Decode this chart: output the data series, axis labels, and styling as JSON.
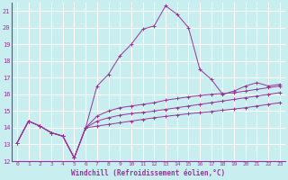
{
  "xlabel": "Windchill (Refroidissement éolien,°C)",
  "background_color": "#c8eef0",
  "grid_color": "#ffffff",
  "line_color": "#993399",
  "xlim": [
    -0.5,
    23.5
  ],
  "ylim": [
    12,
    21.5
  ],
  "yticks": [
    12,
    13,
    14,
    15,
    16,
    17,
    18,
    19,
    20,
    21
  ],
  "xticks": [
    0,
    1,
    2,
    3,
    4,
    5,
    6,
    7,
    8,
    9,
    10,
    11,
    12,
    13,
    14,
    15,
    16,
    17,
    18,
    19,
    20,
    21,
    22,
    23
  ],
  "series": [
    [
      13.1,
      14.4,
      14.1,
      13.7,
      13.5,
      12.2,
      14.0,
      16.5,
      17.2,
      18.3,
      19.0,
      19.9,
      20.1,
      21.3,
      20.8,
      20.0,
      17.5,
      16.9,
      16.0,
      16.2,
      16.5,
      16.7,
      16.5,
      16.6
    ],
    [
      13.1,
      14.4,
      14.1,
      13.7,
      13.5,
      12.2,
      14.0,
      14.7,
      15.0,
      15.2,
      15.3,
      15.4,
      15.5,
      15.65,
      15.75,
      15.85,
      15.93,
      16.0,
      16.05,
      16.1,
      16.2,
      16.3,
      16.4,
      16.5
    ],
    [
      13.1,
      14.4,
      14.1,
      13.7,
      13.5,
      12.2,
      14.0,
      14.4,
      14.6,
      14.75,
      14.85,
      14.92,
      15.0,
      15.1,
      15.2,
      15.3,
      15.4,
      15.5,
      15.6,
      15.7,
      15.8,
      15.9,
      16.0,
      16.1
    ],
    [
      13.1,
      14.4,
      14.1,
      13.7,
      13.5,
      12.2,
      14.0,
      14.1,
      14.2,
      14.3,
      14.4,
      14.5,
      14.6,
      14.68,
      14.76,
      14.84,
      14.9,
      14.97,
      15.05,
      15.12,
      15.2,
      15.3,
      15.4,
      15.5
    ]
  ]
}
